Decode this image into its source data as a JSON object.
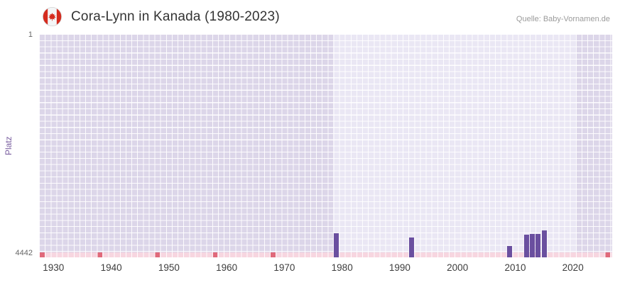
{
  "header": {
    "title": "Cora-Lynn in Kanada (1980-2023)",
    "source": "Quelle: Baby-Vornamen.de",
    "flag": "canada-flag"
  },
  "chart_data": {
    "type": "bar",
    "title": "Cora-Lynn in Kanada (1980-2023)",
    "xlabel": "",
    "ylabel": "Platz",
    "y_axis": {
      "min": 1,
      "max": 4442,
      "top_label": "1",
      "bottom_label": "4442",
      "inverted": true
    },
    "x_range": [
      1927.5,
      2026.8
    ],
    "x_ticks": [
      "1930",
      "1940",
      "1950",
      "1960",
      "1970",
      "1980",
      "1990",
      "2000",
      "2010",
      "2020"
    ],
    "grid": true,
    "legend": false,
    "bands": [
      {
        "from": 1927.5,
        "to": 1978.5,
        "tone": "dark"
      },
      {
        "from": 1978.5,
        "to": 2020.5,
        "tone": "light"
      },
      {
        "from": 2020.5,
        "to": 2026.8,
        "tone": "dark"
      }
    ],
    "series": [
      {
        "name": "Platz",
        "points": [
          {
            "year": 1979,
            "rank": 3960
          },
          {
            "year": 1992,
            "rank": 4040
          },
          {
            "year": 2009,
            "rank": 4210
          },
          {
            "year": 2012,
            "rank": 3990
          },
          {
            "year": 2013,
            "rank": 3980
          },
          {
            "year": 2014,
            "rank": 3970
          },
          {
            "year": 2015,
            "rank": 3900
          }
        ]
      }
    ],
    "no_rank_strip": {
      "description": "years without a ranking (bottom pink strip)",
      "mark_years": [
        1928,
        1938,
        1948,
        1958,
        1968,
        2026
      ]
    },
    "colors": {
      "bar": "#6a4f9f",
      "band_dark": "#dcd6e9",
      "band_light": "#eae7f4",
      "grid": "#ffffff",
      "strip_base": "#f7d6e0",
      "strip_mark": "#e0697a",
      "accent_text": "#7a5fa0"
    }
  }
}
